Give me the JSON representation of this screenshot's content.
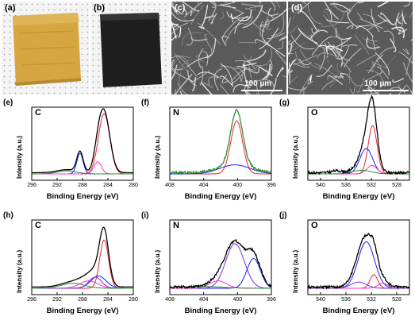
{
  "photos": [
    {
      "label": "(a)",
      "kind": "foam",
      "color": "#d6a640"
    },
    {
      "label": "(b)",
      "kind": "carbon",
      "color": "#1f1f1f"
    },
    {
      "label": "(c)",
      "kind": "sem",
      "scalebar": "100 µm"
    },
    {
      "label": "(d)",
      "kind": "sem",
      "scalebar": "100 µm"
    }
  ],
  "axis_text": {
    "ylabel": "Intensity (a.u.)",
    "xlabel": "Binding Energy (eV)"
  },
  "colors": {
    "envelope": "#000000",
    "c1": "#e8262c",
    "c2": "#1a1aff",
    "c3": "#ff33cc",
    "c4": "#2e8b2e",
    "c5": "#7a2be0"
  },
  "chart_data": [
    {
      "panel": "(e)",
      "type": "line",
      "element": "C",
      "xlim": [
        296,
        280
      ],
      "ticks": [
        296,
        292,
        288,
        284,
        280
      ],
      "series": [
        {
          "color": "#e8262c",
          "peaks": [
            [
              284.6,
              1.0,
              0.9
            ]
          ]
        },
        {
          "color": "#1a1aff",
          "peaks": [
            [
              288.4,
              0.34,
              0.5
            ]
          ]
        },
        {
          "color": "#ff33cc",
          "peaks": [
            [
              285.6,
              0.2,
              0.6
            ]
          ]
        },
        {
          "color": "#2e8b2e",
          "peaks": [
            [
              290.5,
              0.05,
              1.5
            ]
          ]
        },
        {
          "color": "#000000",
          "envelope": true,
          "peaks": [
            [
              284.6,
              1.0,
              0.9
            ],
            [
              288.4,
              0.34,
              0.5
            ],
            [
              285.6,
              0.2,
              0.6
            ],
            [
              290.5,
              0.05,
              1.5
            ]
          ]
        }
      ]
    },
    {
      "panel": "(f)",
      "type": "line",
      "element": "N",
      "xlim": [
        408,
        396
      ],
      "ticks": [
        408,
        404,
        400,
        396
      ],
      "series": [
        {
          "color": "#e8262c",
          "peaks": [
            [
              400.1,
              0.88,
              0.7
            ]
          ]
        },
        {
          "color": "#1a1aff",
          "peaks": [
            [
              400.3,
              0.15,
              1.8
            ]
          ]
        },
        {
          "color": "#2e8b2e",
          "envelope": true,
          "noisy": true,
          "peaks": [
            [
              400.1,
              0.88,
              0.7
            ],
            [
              400.3,
              0.15,
              1.8
            ]
          ]
        }
      ]
    },
    {
      "panel": "(g)",
      "type": "line",
      "element": "O",
      "xlim": [
        542,
        526
      ],
      "ticks": [
        540,
        536,
        532,
        528
      ],
      "series": [
        {
          "color": "#e8262c",
          "peaks": [
            [
              531.8,
              0.8,
              0.7
            ]
          ]
        },
        {
          "color": "#1a1aff",
          "peaks": [
            [
              532.8,
              0.42,
              1.0
            ]
          ]
        },
        {
          "color": "#ff33cc",
          "peaks": [
            [
              531.9,
              0.14,
              0.8
            ]
          ]
        },
        {
          "color": "#2e8b2e",
          "peaks": [
            [
              533.5,
              0.06,
              1.5
            ]
          ]
        },
        {
          "color": "#000000",
          "envelope": true,
          "noisy": true,
          "peaks": [
            [
              531.8,
              0.8,
              0.7
            ],
            [
              532.8,
              0.42,
              1.0
            ],
            [
              531.9,
              0.14,
              0.8
            ],
            [
              533.5,
              0.06,
              1.5
            ],
            [
              537.5,
              0.03,
              0.8
            ]
          ]
        }
      ]
    },
    {
      "panel": "(h)",
      "type": "line",
      "element": "C",
      "xlim": [
        296,
        280
      ],
      "ticks": [
        296,
        292,
        288,
        284,
        280
      ],
      "series": [
        {
          "color": "#e8262c",
          "peaks": [
            [
              284.6,
              0.78,
              0.7
            ]
          ]
        },
        {
          "color": "#1a1aff",
          "peaks": [
            [
              285.5,
              0.2,
              1.2
            ]
          ]
        },
        {
          "color": "#ff33cc",
          "peaks": [
            [
              287.0,
              0.12,
              1.4
            ]
          ]
        },
        {
          "color": "#7a2be0",
          "peaks": [
            [
              286.0,
              0.18,
              1.0
            ]
          ]
        },
        {
          "color": "#2e8b2e",
          "peaks": [
            [
              289.5,
              0.08,
              1.8
            ]
          ]
        },
        {
          "color": "#000000",
          "envelope": true,
          "peaks": [
            [
              284.6,
              0.78,
              0.7
            ],
            [
              285.5,
              0.2,
              1.2
            ],
            [
              287.0,
              0.12,
              1.4
            ],
            [
              289.5,
              0.08,
              1.8
            ]
          ]
        }
      ]
    },
    {
      "panel": "(i)",
      "type": "line",
      "element": "N",
      "xlim": [
        408,
        396
      ],
      "ticks": [
        408,
        404,
        400,
        396
      ],
      "series": [
        {
          "color": "#7a2be0",
          "peaks": [
            [
              400.3,
              0.72,
              1.1
            ]
          ]
        },
        {
          "color": "#1a1aff",
          "peaks": [
            [
              398.1,
              0.48,
              0.8
            ]
          ]
        },
        {
          "color": "#ff33cc",
          "peaks": [
            [
              402.3,
              0.12,
              1.0
            ]
          ]
        },
        {
          "color": "#2e8b2e",
          "peaks": [
            [
              404.5,
              0.03,
              2.5
            ]
          ]
        },
        {
          "color": "#000000",
          "envelope": true,
          "noisy": true,
          "peaks": [
            [
              400.3,
              0.72,
              1.1
            ],
            [
              398.1,
              0.48,
              0.8
            ],
            [
              402.3,
              0.12,
              1.0
            ]
          ]
        }
      ]
    },
    {
      "panel": "(j)",
      "type": "line",
      "element": "O",
      "xlim": [
        542,
        526
      ],
      "ticks": [
        540,
        536,
        532,
        528
      ],
      "series": [
        {
          "color": "#e8262c",
          "peaks": [
            [
              531.6,
              0.22,
              0.6
            ]
          ]
        },
        {
          "color": "#1a1aff",
          "peaks": [
            [
              532.8,
              0.75,
              1.3
            ]
          ]
        },
        {
          "color": "#ff33cc",
          "peaks": [
            [
              530.2,
              0.08,
              0.8
            ]
          ]
        },
        {
          "color": "#7a2be0",
          "peaks": [
            [
              534.0,
              0.1,
              1.2
            ]
          ]
        },
        {
          "color": "#000000",
          "envelope": true,
          "noisy": true,
          "peaks": [
            [
              531.6,
              0.22,
              0.6
            ],
            [
              532.8,
              0.75,
              1.3
            ],
            [
              530.2,
              0.08,
              0.8
            ],
            [
              534.0,
              0.1,
              1.2
            ]
          ]
        }
      ]
    }
  ]
}
